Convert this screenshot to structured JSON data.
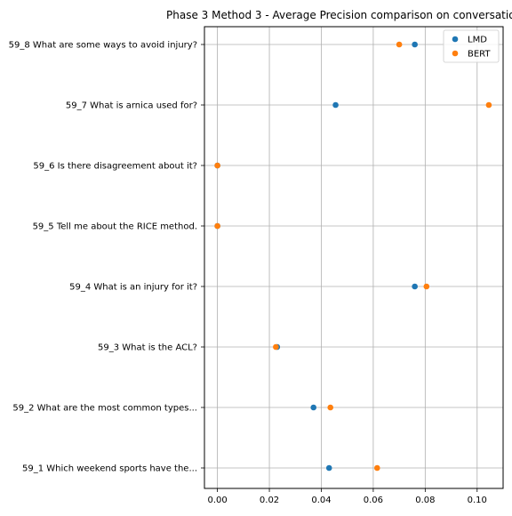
{
  "chart_data": {
    "type": "scatter",
    "title": "Phase 3 Method 3 - Average Precision comparison on conversatio",
    "xlabel": "",
    "ylabel": "",
    "xlim": [
      -0.005,
      0.11
    ],
    "xticks": [
      0.0,
      0.02,
      0.04,
      0.06,
      0.08,
      0.1
    ],
    "xtick_labels": [
      "0.00",
      "0.02",
      "0.04",
      "0.06",
      "0.08",
      "0.10"
    ],
    "grid": true,
    "legend_position": "top-right",
    "categories": [
      "59_8 What are some ways to avoid injury?",
      "59_7 What is arnica used for?",
      "59_6 Is there disagreement about it?",
      "59_5 Tell me about the RICE method.",
      "59_4 What is an injury for it?",
      "59_3 What is the ACL?",
      "59_2 What are the most common types...",
      "59_1 Which weekend sports have the..."
    ],
    "series": [
      {
        "name": "LMD",
        "color": "#1f77b4",
        "values": [
          0.076,
          0.0455,
          0.0,
          0.0,
          0.076,
          0.023,
          0.037,
          0.043
        ]
      },
      {
        "name": "BERT",
        "color": "#ff7f0e",
        "values": [
          0.07,
          0.1045,
          0.0,
          0.0,
          0.0805,
          0.0225,
          0.0435,
          0.0615
        ]
      }
    ]
  }
}
